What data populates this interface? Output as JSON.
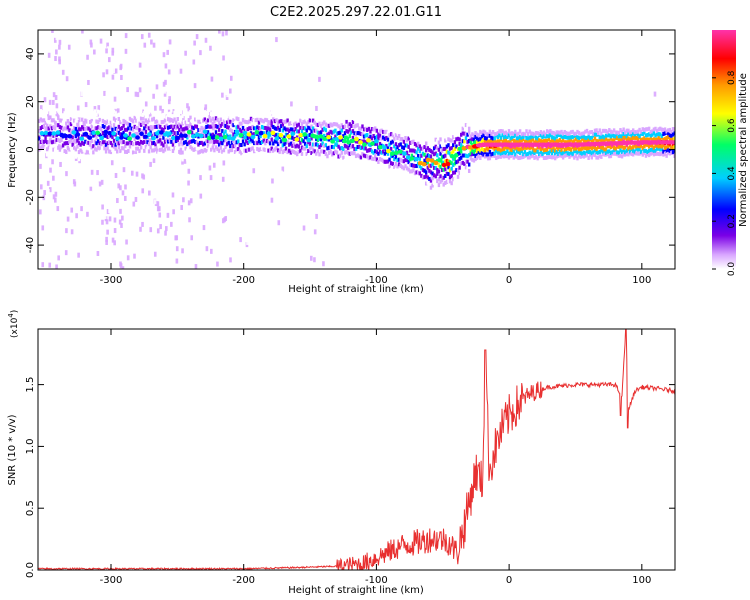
{
  "title": "C2E2.2025.297.22.01.G11",
  "chart_data": [
    {
      "type": "heatmap",
      "panel": "spectrogram",
      "xlabel": "Height of straight line (km)",
      "ylabel": "Frequency (Hz)",
      "xlim": [
        -355,
        125
      ],
      "ylim": [
        -50,
        50
      ],
      "xticks": [
        -300,
        -200,
        -100,
        0,
        100
      ],
      "yticks": [
        -40,
        -20,
        0,
        20,
        40
      ],
      "colorbar": {
        "label": "Normalized spectral amplitude",
        "range": [
          0,
          1
        ],
        "ticks": [
          0.0,
          0.2,
          0.4,
          0.6,
          0.8
        ],
        "tick_labels": [
          "0.0",
          "0.2",
          "0.4",
          "0.6",
          "0.8"
        ],
        "colors": [
          "#ffffff",
          "#d9a6ff",
          "#7a00e6",
          "#0000ff",
          "#00cfff",
          "#00ff66",
          "#ffff00",
          "#ff9900",
          "#ff0000",
          "#ff33aa"
        ]
      },
      "ridge": {
        "x": [
          -355,
          -300,
          -250,
          -200,
          -150,
          -120,
          -100,
          -80,
          -60,
          -45,
          -35,
          -20,
          0,
          50,
          100,
          125
        ],
        "y": [
          6,
          6,
          6,
          6,
          5,
          4,
          2,
          -2,
          -6,
          -5,
          0,
          2,
          2,
          2,
          3,
          3
        ],
        "amplitude": [
          0.25,
          0.28,
          0.3,
          0.35,
          0.4,
          0.4,
          0.38,
          0.35,
          0.5,
          0.6,
          0.5,
          0.85,
          0.95,
          0.9,
          0.95,
          0.85
        ]
      }
    },
    {
      "type": "line",
      "panel": "snr",
      "xlabel": "Height of straight line (km)",
      "ylabel": "SNR (10 * v/v)",
      "scale_label": "(x10",
      "scale_exp": "4",
      "xlim": [
        -355,
        125
      ],
      "ylim": [
        0,
        1.95
      ],
      "xticks": [
        -300,
        -200,
        -100,
        0,
        100
      ],
      "yticks": [
        0.0,
        0.5,
        1.0,
        1.5
      ],
      "ytick_labels": [
        "0.0",
        "0.5",
        "1.0",
        "1.5"
      ],
      "color": "#e83030",
      "series": [
        {
          "name": "SNR",
          "x": [
            -355,
            -300,
            -250,
            -200,
            -160,
            -130,
            -110,
            -100,
            -90,
            -80,
            -70,
            -60,
            -50,
            -45,
            -40,
            -35,
            -30,
            -25,
            -20,
            -18,
            -15,
            -10,
            -5,
            0,
            10,
            20,
            30,
            50,
            80,
            85,
            88,
            90,
            95,
            100,
            110,
            125
          ],
          "y": [
            0.01,
            0.01,
            0.01,
            0.01,
            0.02,
            0.03,
            0.05,
            0.1,
            0.15,
            0.2,
            0.22,
            0.25,
            0.25,
            0.22,
            0.15,
            0.3,
            0.55,
            0.8,
            0.7,
            1.78,
            0.8,
            1.0,
            1.15,
            1.25,
            1.38,
            1.45,
            1.48,
            1.5,
            1.5,
            1.4,
            1.95,
            1.3,
            1.45,
            1.48,
            1.47,
            1.45
          ]
        }
      ]
    }
  ]
}
